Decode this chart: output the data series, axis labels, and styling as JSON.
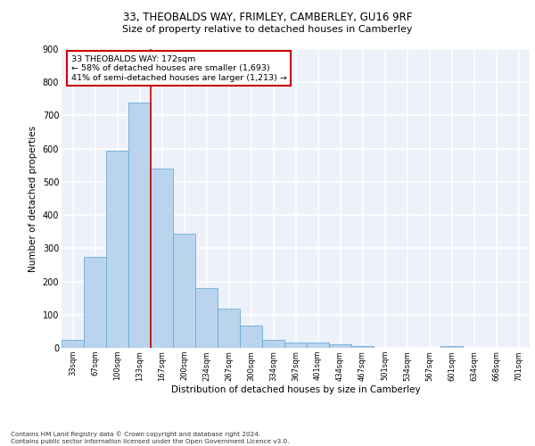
{
  "title_line1": "33, THEOBALDS WAY, FRIMLEY, CAMBERLEY, GU16 9RF",
  "title_line2": "Size of property relative to detached houses in Camberley",
  "xlabel": "Distribution of detached houses by size in Camberley",
  "ylabel": "Number of detached properties",
  "categories": [
    "33sqm",
    "67sqm",
    "100sqm",
    "133sqm",
    "167sqm",
    "200sqm",
    "234sqm",
    "267sqm",
    "300sqm",
    "334sqm",
    "367sqm",
    "401sqm",
    "434sqm",
    "467sqm",
    "501sqm",
    "534sqm",
    "567sqm",
    "601sqm",
    "634sqm",
    "668sqm",
    "701sqm"
  ],
  "values": [
    25,
    275,
    595,
    740,
    540,
    345,
    180,
    118,
    68,
    25,
    17,
    15,
    10,
    6,
    0,
    0,
    0,
    5,
    0,
    0,
    0
  ],
  "bar_color": "#bad4ee",
  "bar_edge_color": "#6aaad4",
  "vline_color": "#cc0000",
  "vline_index": 3.5,
  "annotation_text": "33 THEOBALDS WAY: 172sqm\n← 58% of detached houses are smaller (1,693)\n41% of semi-detached houses are larger (1,213) →",
  "annotation_box_color": "#ffffff",
  "annotation_box_edge_color": "#cc0000",
  "ylim": [
    0,
    900
  ],
  "yticks": [
    0,
    100,
    200,
    300,
    400,
    500,
    600,
    700,
    800,
    900
  ],
  "background_color": "#edf2fa",
  "grid_color": "#ffffff",
  "footer_line1": "Contains HM Land Registry data © Crown copyright and database right 2024.",
  "footer_line2": "Contains public sector information licensed under the Open Government Licence v3.0."
}
